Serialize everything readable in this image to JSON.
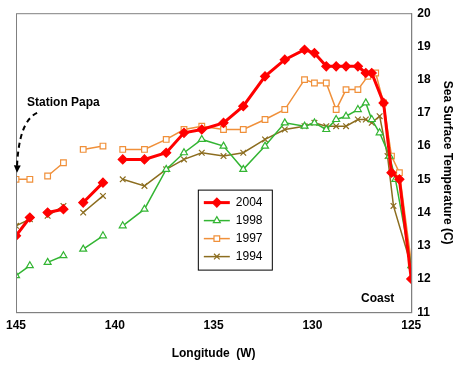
{
  "chart_data": {
    "type": "line",
    "x_label": "Longitude  (W)",
    "y_label": "Sea Surface Temperature (C)",
    "xlim": [
      145,
      125
    ],
    "xticks": [
      145,
      140,
      135,
      130,
      125
    ],
    "ylim": [
      11,
      20
    ],
    "yticks": [
      11,
      12,
      13,
      14,
      15,
      16,
      17,
      18,
      19,
      20
    ],
    "grid": false,
    "legend": "center",
    "annotations": [
      {
        "text": "Station Papa",
        "x": 142.6,
        "y": 17.3,
        "arrow_to": [
          145,
          15.2
        ]
      },
      {
        "text": "Coast",
        "x": 126.7,
        "y": 11.4
      }
    ],
    "series": [
      {
        "name": "2004",
        "color": "#ff0000",
        "marker": "diamond",
        "line_style": "solid",
        "x": [
          145,
          144.3,
          143.85,
          143.4,
          142.6,
          142.1,
          141.6,
          140.6,
          140.1,
          139.6,
          138.5,
          137.4,
          136.5,
          135.6,
          134.5,
          133.5,
          132.4,
          131.4,
          130.4,
          129.9,
          129.3,
          128.8,
          128.3,
          127.7,
          127.3,
          127.0,
          126.4,
          126.0,
          125.6,
          125.0
        ],
        "values": [
          13.3,
          13.85,
          null,
          14.0,
          14.1,
          null,
          14.3,
          14.9,
          null,
          15.6,
          15.6,
          15.8,
          16.4,
          16.5,
          16.7,
          17.2,
          18.1,
          18.6,
          18.9,
          18.8,
          18.4,
          18.4,
          18.4,
          18.4,
          18.2,
          18.2,
          17.3,
          15.2,
          15.0,
          12.0
        ]
      },
      {
        "name": "1998",
        "color": "#33b533",
        "marker": "open_triangle",
        "line_style": "solid",
        "x": [
          145,
          144.3,
          143.85,
          143.4,
          142.6,
          142.1,
          141.6,
          140.6,
          140.1,
          139.6,
          138.5,
          137.4,
          136.5,
          135.6,
          134.5,
          133.5,
          132.4,
          131.4,
          130.4,
          129.9,
          129.3,
          128.8,
          128.3,
          127.7,
          127.3,
          127.0,
          126.6,
          126.1,
          125.8,
          125.0
        ],
        "values": [
          12.1,
          12.4,
          null,
          12.5,
          12.7,
          null,
          12.9,
          13.3,
          null,
          13.6,
          14.1,
          15.3,
          15.8,
          16.2,
          16.0,
          15.3,
          16.0,
          16.7,
          16.6,
          16.7,
          16.5,
          16.8,
          16.9,
          17.1,
          17.3,
          16.8,
          16.4,
          15.7,
          15.0,
          12.4
        ]
      },
      {
        "name": "1997",
        "color": "#f0903a",
        "marker": "open_square",
        "line_style": "solid",
        "x": [
          145,
          144.3,
          143.85,
          143.4,
          142.6,
          142.1,
          141.6,
          140.6,
          140.1,
          139.6,
          138.5,
          137.4,
          136.5,
          135.6,
          134.5,
          133.5,
          132.4,
          131.4,
          130.4,
          129.9,
          129.3,
          128.8,
          128.3,
          127.7,
          127.2,
          126.8,
          126.4,
          126.0,
          125.6,
          125.0
        ],
        "values": [
          15.0,
          15.0,
          null,
          15.1,
          15.5,
          null,
          15.9,
          16.0,
          null,
          15.9,
          15.9,
          16.2,
          16.5,
          16.6,
          16.5,
          16.5,
          16.8,
          17.1,
          18.0,
          17.9,
          17.9,
          17.1,
          17.7,
          17.7,
          18.1,
          18.2,
          17.3,
          15.7,
          15.2,
          12.5
        ]
      },
      {
        "name": "1994",
        "color": "#8c6d1f",
        "marker": "x",
        "line_style": "solid",
        "x": [
          145,
          144.3,
          143.85,
          143.4,
          142.6,
          142.1,
          141.6,
          140.6,
          140.1,
          139.6,
          138.5,
          137.4,
          136.5,
          135.6,
          134.5,
          133.5,
          132.4,
          131.4,
          130.4,
          129.9,
          129.3,
          128.8,
          128.3,
          127.7,
          127.3,
          127.0,
          126.6,
          126.2,
          125.9,
          125.0
        ],
        "values": [
          13.6,
          13.8,
          null,
          13.9,
          14.2,
          null,
          14.0,
          14.5,
          null,
          15.0,
          14.8,
          15.3,
          15.6,
          15.8,
          15.7,
          15.8,
          16.2,
          16.5,
          16.6,
          16.7,
          16.6,
          16.6,
          16.6,
          16.8,
          16.8,
          16.7,
          16.9,
          15.7,
          14.2,
          12.4
        ]
      }
    ]
  }
}
